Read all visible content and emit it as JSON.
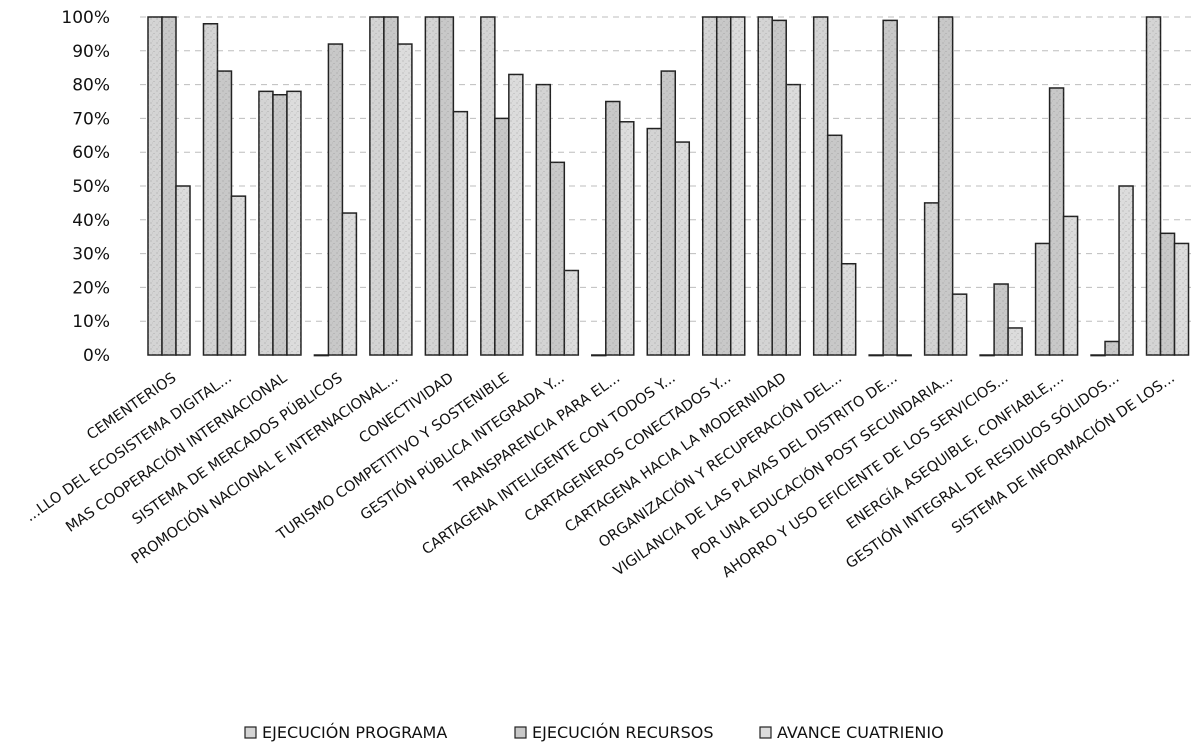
{
  "chart_data": {
    "type": "bar",
    "categories": [
      "CEMENTERIOS",
      "...LLO DEL ECOSISTEMA DIGITAL...",
      "MAS COOPERACIÓN INTERNACIONAL",
      "SISTEMA DE MERCADOS PÚBLICOS",
      "PROMOCIÓN NACIONAL E INTERNACIONAL...",
      "CONECTIVIDAD",
      "TURISMO COMPETITIVO Y SOSTENIBLE",
      "GESTIÓN PÚBLICA INTEGRADA Y...",
      "TRANSPARENCIA PARA EL...",
      "CARTAGENA INTELIGENTE CON TODOS Y...",
      "CARTAGENEROS CONECTADOS Y...",
      "CARTAGENA HACIA LA MODERNIDAD",
      "ORGANIZACIÓN Y RECUPERACIÓN DEL...",
      "VIGILANCIA DE LAS PLAYAS DEL DISTRITO DE...",
      "POR UNA EDUCACIÓN POST SECUNDARIA...",
      "AHORRO Y USO EFICIENTE DE LOS SERVICIOS...",
      "ENERGÍA ASEQUIBLE, CONFIABLE,...",
      "GESTIÓN INTEGRAL DE RESIDUOS SÓLIDOS...",
      "SISTEMA DE INFORMACIÓN DE LOS..."
    ],
    "series": [
      {
        "name": "EJECUCIÓN PROGRAMA",
        "color": "#d4d4d4",
        "values": [
          100,
          98,
          78,
          0,
          100,
          100,
          100,
          80,
          0,
          67,
          100,
          100,
          100,
          0,
          45,
          0,
          33,
          0,
          100
        ]
      },
      {
        "name": "EJECUCIÓN RECURSOS",
        "color": "#c8c8c8",
        "values": [
          100,
          84,
          77,
          92,
          100,
          100,
          70,
          57,
          75,
          84,
          100,
          99,
          65,
          99,
          100,
          21,
          79,
          4,
          36
        ]
      },
      {
        "name": "AVANCE CUATRIENIO",
        "color": "#dcdcdc",
        "values": [
          50,
          47,
          78,
          42,
          92,
          72,
          83,
          25,
          69,
          63,
          100,
          80,
          27,
          0,
          18,
          8,
          41,
          50,
          33
        ]
      }
    ],
    "yticks": [
      "0%",
      "10%",
      "20%",
      "30%",
      "40%",
      "50%",
      "60%",
      "70%",
      "80%",
      "90%",
      "100%"
    ],
    "ylim": [
      0,
      100
    ],
    "grid": true,
    "legend_position": "bottom"
  }
}
